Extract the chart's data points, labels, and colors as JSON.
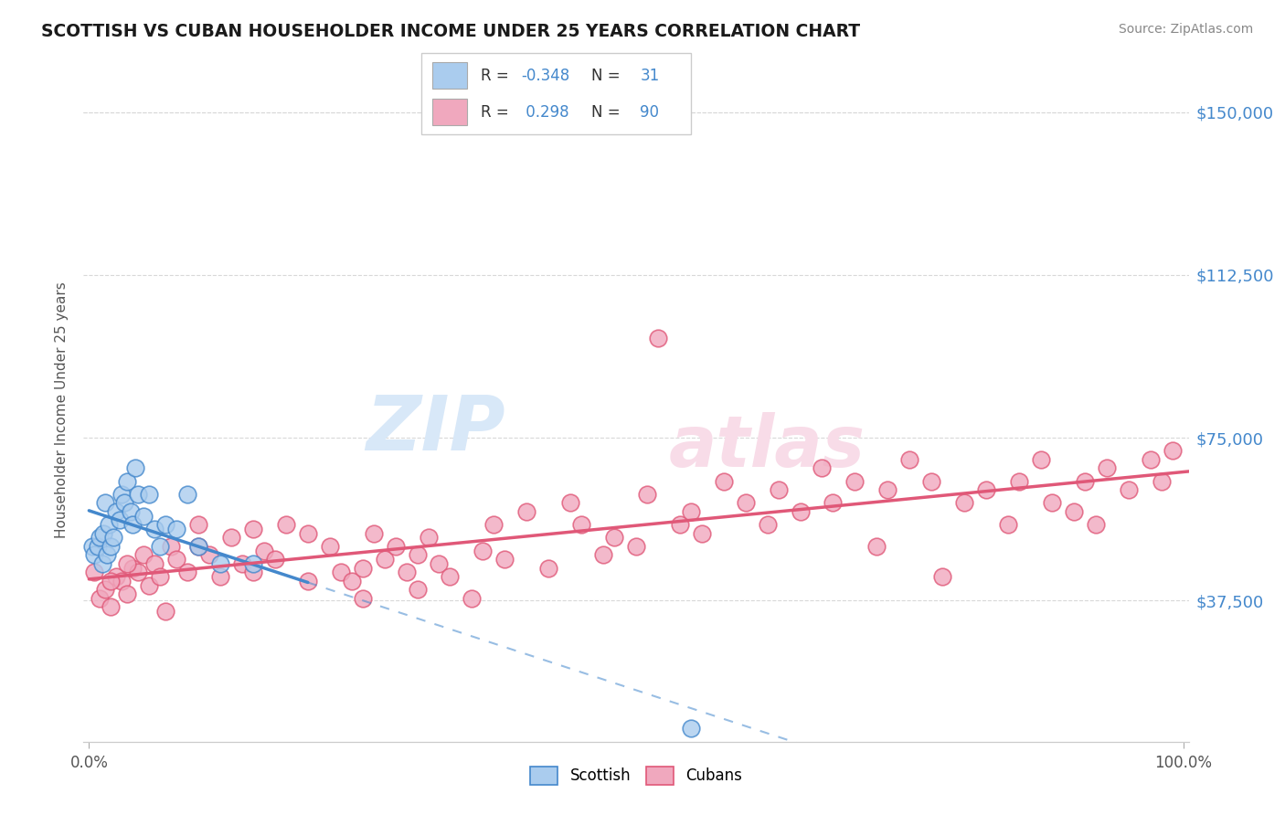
{
  "title": "SCOTTISH VS CUBAN HOUSEHOLDER INCOME UNDER 25 YEARS CORRELATION CHART",
  "source": "Source: ZipAtlas.com",
  "ylabel": "Householder Income Under 25 years",
  "ytick_labels": [
    "$37,500",
    "$75,000",
    "$112,500",
    "$150,000"
  ],
  "ytick_values": [
    37500,
    75000,
    112500,
    150000
  ],
  "ymax": 158000,
  "ymin": 5000,
  "xmin": -0.5,
  "xmax": 100.5,
  "legend_r_scottish": "-0.348",
  "legend_n_scottish": "31",
  "legend_r_cuban": "0.298",
  "legend_n_cuban": "90",
  "scottish_dot_color": "#aaccee",
  "cuban_dot_color": "#f0a8be",
  "scottish_line_color": "#4488cc",
  "cuban_line_color": "#e05878",
  "background_color": "#ffffff",
  "grid_color": "#d8d8d8",
  "scottish_x": [
    0.3,
    0.5,
    0.8,
    1.0,
    1.2,
    1.3,
    1.5,
    1.6,
    1.8,
    2.0,
    2.2,
    2.5,
    2.8,
    3.0,
    3.2,
    3.5,
    3.8,
    4.0,
    4.2,
    4.5,
    5.0,
    5.5,
    6.0,
    6.5,
    7.0,
    8.0,
    9.0,
    10.0,
    12.0,
    15.0,
    55.0
  ],
  "scottish_y": [
    50000,
    48000,
    50000,
    52000,
    46000,
    53000,
    60000,
    48000,
    55000,
    50000,
    52000,
    58000,
    56000,
    62000,
    60000,
    65000,
    58000,
    55000,
    68000,
    62000,
    57000,
    62000,
    54000,
    50000,
    55000,
    54000,
    62000,
    50000,
    46000,
    46000,
    8000
  ],
  "cuban_x": [
    0.5,
    1.0,
    1.5,
    2.0,
    2.5,
    3.0,
    3.5,
    4.0,
    4.5,
    5.0,
    5.5,
    6.0,
    6.5,
    7.0,
    7.5,
    8.0,
    9.0,
    10.0,
    11.0,
    12.0,
    13.0,
    14.0,
    15.0,
    16.0,
    17.0,
    18.0,
    20.0,
    22.0,
    23.0,
    24.0,
    25.0,
    26.0,
    27.0,
    28.0,
    29.0,
    30.0,
    31.0,
    32.0,
    33.0,
    35.0,
    36.0,
    37.0,
    38.0,
    40.0,
    42.0,
    44.0,
    45.0,
    47.0,
    48.0,
    50.0,
    51.0,
    52.0,
    54.0,
    55.0,
    56.0,
    58.0,
    60.0,
    62.0,
    63.0,
    65.0,
    67.0,
    68.0,
    70.0,
    72.0,
    73.0,
    75.0,
    77.0,
    78.0,
    80.0,
    82.0,
    84.0,
    85.0,
    87.0,
    88.0,
    90.0,
    91.0,
    92.0,
    93.0,
    95.0,
    97.0,
    98.0,
    99.0,
    2.0,
    3.5,
    10.0,
    15.0,
    20.0,
    25.0,
    30.0
  ],
  "cuban_y": [
    44000,
    38000,
    40000,
    36000,
    43000,
    42000,
    39000,
    45000,
    44000,
    48000,
    41000,
    46000,
    43000,
    35000,
    50000,
    47000,
    44000,
    55000,
    48000,
    43000,
    52000,
    46000,
    54000,
    49000,
    47000,
    55000,
    53000,
    50000,
    44000,
    42000,
    45000,
    53000,
    47000,
    50000,
    44000,
    48000,
    52000,
    46000,
    43000,
    38000,
    49000,
    55000,
    47000,
    58000,
    45000,
    60000,
    55000,
    48000,
    52000,
    50000,
    62000,
    98000,
    55000,
    58000,
    53000,
    65000,
    60000,
    55000,
    63000,
    58000,
    68000,
    60000,
    65000,
    50000,
    63000,
    70000,
    65000,
    43000,
    60000,
    63000,
    55000,
    65000,
    70000,
    60000,
    58000,
    65000,
    55000,
    68000,
    63000,
    70000,
    65000,
    72000,
    42000,
    46000,
    50000,
    44000,
    42000,
    38000,
    40000
  ]
}
